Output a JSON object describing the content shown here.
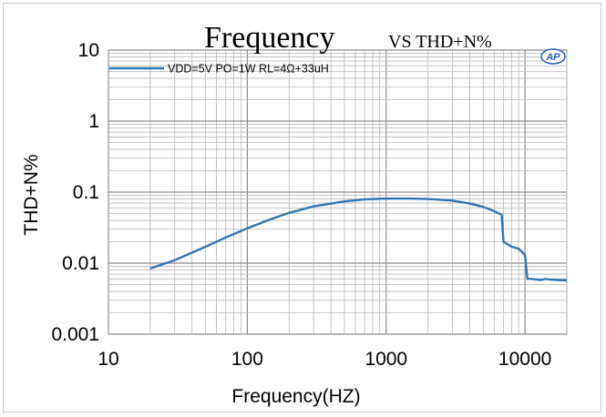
{
  "chart_data": {
    "type": "line",
    "title": "Frequency",
    "title_suffix": "VS THD+N%",
    "xlabel": "Frequency(HZ)",
    "ylabel": "THD+N%",
    "x_scale": "log",
    "y_scale": "log",
    "xlim": [
      10,
      20000
    ],
    "ylim": [
      0.001,
      10
    ],
    "x_ticks": [
      10,
      100,
      1000,
      10000
    ],
    "x_tick_labels": [
      "10",
      "100",
      "1000",
      "10000"
    ],
    "y_ticks": [
      0.001,
      0.01,
      0.1,
      1,
      10
    ],
    "y_tick_labels": [
      "0.001",
      "0.01",
      "0.1",
      "1",
      "10"
    ],
    "grid": true,
    "legend_position": "top-left",
    "logo": "AP",
    "series": [
      {
        "name": "VDD=5V  PO=1W RL=4Ω+33uH",
        "color": "#2e75b6",
        "x": [
          20,
          30,
          50,
          70,
          100,
          150,
          200,
          300,
          500,
          700,
          1000,
          1500,
          2000,
          3000,
          4000,
          5000,
          6000,
          6800,
          7000,
          8000,
          9000,
          10000,
          10400,
          11000,
          13000,
          14000,
          15000,
          17000,
          20000
        ],
        "y": [
          0.0084,
          0.011,
          0.017,
          0.023,
          0.031,
          0.042,
          0.051,
          0.063,
          0.074,
          0.079,
          0.081,
          0.081,
          0.08,
          0.076,
          0.069,
          0.062,
          0.054,
          0.048,
          0.02,
          0.017,
          0.016,
          0.013,
          0.006,
          0.006,
          0.0058,
          0.006,
          0.0059,
          0.0058,
          0.0057
        ]
      }
    ]
  }
}
